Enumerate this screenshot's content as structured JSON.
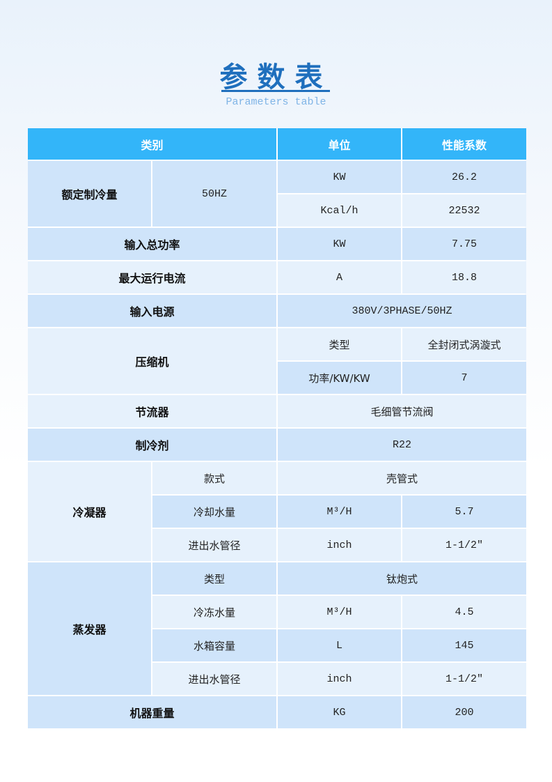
{
  "title": "参数表",
  "subtitle": "Parameters table",
  "columns": [
    "类别",
    "单位",
    "性能系数"
  ],
  "rated_cooling": {
    "label": "额定制冷量",
    "freq": "50HZ",
    "items": [
      {
        "unit": "KW",
        "value": "26.2"
      },
      {
        "unit": "Kcal/h",
        "value": "22532"
      }
    ]
  },
  "input_power": {
    "label": "输入总功率",
    "unit": "KW",
    "value": "7.75"
  },
  "max_current": {
    "label": "最大运行电流",
    "unit": "A",
    "value": "18.8"
  },
  "power_supply": {
    "label": "输入电源",
    "value": "380V/3PHASE/50HZ"
  },
  "compressor": {
    "label": "压缩机",
    "items": [
      {
        "name": "类型",
        "value": "全封闭式涡漩式"
      },
      {
        "name": "功率/KW/KW",
        "value": "7"
      }
    ]
  },
  "throttle": {
    "label": "节流器",
    "value": "毛细管节流阀"
  },
  "refrigerant": {
    "label": "制冷剂",
    "value": "R22"
  },
  "condenser": {
    "label": "冷凝器",
    "items": [
      {
        "name": "款式",
        "value": "壳管式"
      },
      {
        "name": "冷却水量",
        "unit": "M³/H",
        "value": "5.7"
      },
      {
        "name": "进出水管径",
        "unit": "inch",
        "value": "1-1/2″"
      }
    ]
  },
  "evaporator": {
    "label": "蒸发器",
    "items": [
      {
        "name": "类型",
        "value": "钛炮式"
      },
      {
        "name": "冷冻水量",
        "unit": "M³/H",
        "value": "4.5"
      },
      {
        "name": "水箱容量",
        "unit": "L",
        "value": "145"
      },
      {
        "name": "进出水管径",
        "unit": "inch",
        "value": "1-1/2″"
      }
    ]
  },
  "weight": {
    "label": "机器重量",
    "unit": "KG",
    "value": "200"
  },
  "colors": {
    "header": "#33b5f9",
    "row_dark": "#cfe4fa",
    "row_light": "#e6f1fc",
    "title": "#1f6fbd"
  }
}
